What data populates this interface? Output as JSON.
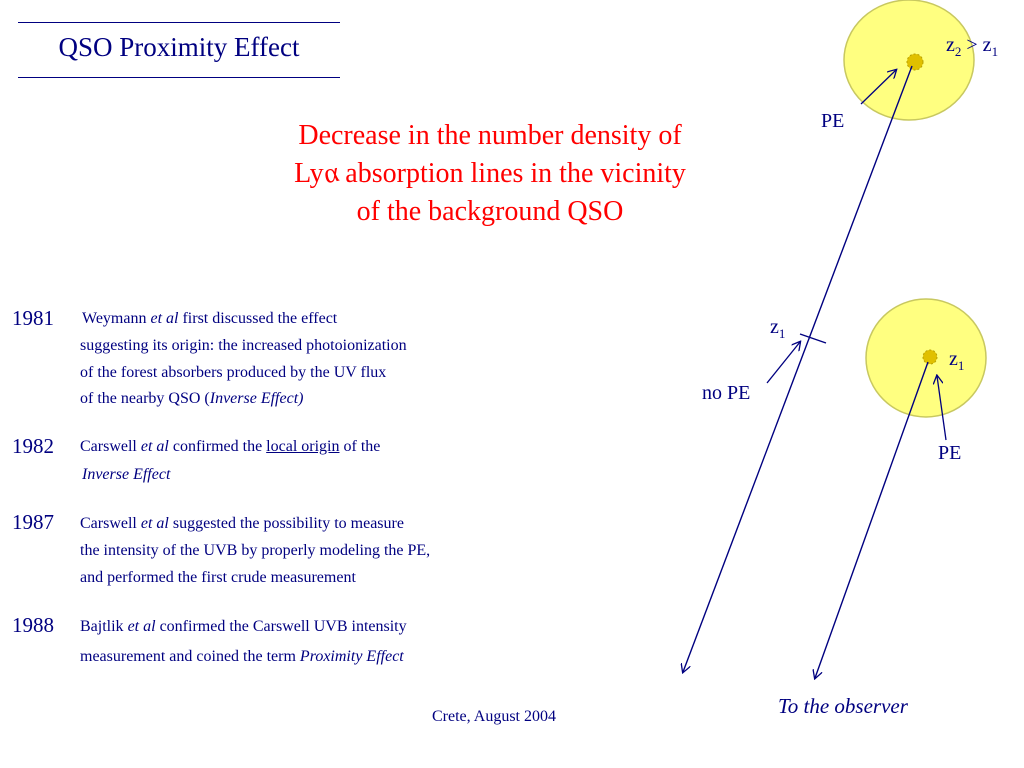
{
  "title": "QSO Proximity Effect",
  "headline": {
    "line1": "Decrease in the number density of",
    "line2_prefix": "Ly",
    "line2_glyph": "α",
    "line2_suffix": " absorption lines  in the vicinity",
    "line3": "of the background QSO"
  },
  "timeline": [
    {
      "year": "1981",
      "lines": [
        {
          "pre": "Weymann ",
          "em": "et al",
          "post": " first discussed the effect"
        },
        {
          "pre": "suggesting its origin: the increased photoionization"
        },
        {
          "pre": "of the forest absorbers produced by the UV flux"
        },
        {
          "pre": "of the nearby QSO  (",
          "em": "Inverse Effect)"
        }
      ]
    },
    {
      "year": "1982",
      "lines": [
        {
          "pre": "Carswell ",
          "em": "et al",
          "post": " confirmed the ",
          "u": "local origin",
          "post2": "  of the"
        },
        {
          "em": " Inverse Effect"
        }
      ]
    },
    {
      "year": "1987",
      "lines": [
        {
          "pre": "Carswell ",
          "em": "et al",
          "post": " suggested the possibility to measure"
        },
        {
          "pre": "the intensity of the UVB by properly modeling the PE,"
        },
        {
          "pre": "and performed the first crude measurement"
        }
      ]
    },
    {
      "year": "1988",
      "lines": [
        {
          "pre": "Bajtlik ",
          "em": "et al",
          "post": " confirmed the Carswell UVB intensity"
        },
        {
          "pre": "measurement and coined the term ",
          "em": "Proximity Effect"
        }
      ]
    }
  ],
  "diagram": {
    "label_z2_gt_z1": {
      "z": "z",
      "sub2": "2",
      "gt": " > ",
      "z1": "z",
      "sub1": "1"
    },
    "label_pe_top": "PE",
    "label_z1_mid": {
      "z": "z",
      "sub": "1"
    },
    "label_no_pe": "no PE",
    "label_z1_qso": {
      "z": "z",
      "sub": "1"
    },
    "label_pe_bottom": "PE",
    "observer": "To the observer",
    "colors": {
      "halo": "#ffff80",
      "halo_stroke": "#c8c860",
      "core": "#e0c000",
      "lines": "#000080"
    }
  },
  "footer": "Crete,  August 2004"
}
